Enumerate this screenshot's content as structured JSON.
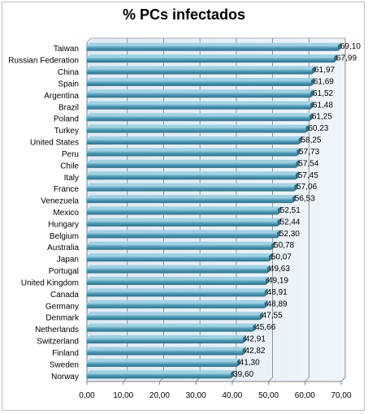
{
  "chart_data": {
    "type": "bar",
    "orientation": "horizontal",
    "title": "% PCs infectados",
    "xlabel": "",
    "ylabel": "",
    "xlim": [
      0,
      70
    ],
    "x_ticks": [
      "0,00",
      "10,00",
      "20,00",
      "30,00",
      "40,00",
      "50,00",
      "60,00",
      "70,00"
    ],
    "grid": "vertical major gridlines",
    "legend": "none",
    "categories": [
      "Taiwan",
      "Russian Federation",
      "China",
      "Spain",
      "Argentina",
      "Brazil",
      "Poland",
      "Turkey",
      "United States",
      "Peru",
      "Chile",
      "Italy",
      "France",
      "Venezuela",
      "Mexico",
      "Hungary",
      "Belgium",
      "Australia",
      "Japan",
      "Portugal",
      "United Kingdom",
      "Canada",
      "Germany",
      "Denmark",
      "Netherlands",
      "Switzerland",
      "Finland",
      "Sweden",
      "Norway"
    ],
    "values": [
      69.1,
      67.99,
      61.97,
      61.69,
      61.52,
      61.48,
      61.25,
      60.23,
      58.25,
      57.73,
      57.54,
      57.45,
      57.06,
      56.53,
      52.51,
      52.44,
      52.3,
      50.78,
      50.07,
      49.63,
      49.19,
      48.91,
      48.89,
      47.55,
      45.66,
      42.91,
      42.82,
      41.3,
      39.6
    ],
    "value_labels": [
      "69,10",
      "67,99",
      "61,97",
      "61,69",
      "61,52",
      "61,48",
      "61,25",
      "60,23",
      "58,25",
      "57,73",
      "57,54",
      "57,45",
      "57,06",
      "56,53",
      "52,51",
      "52,44",
      "52,30",
      "50,78",
      "50,07",
      "49,63",
      "49,19",
      "48,91",
      "48,89",
      "47,55",
      "45,66",
      "42,91",
      "42,82",
      "41,30",
      "39,60"
    ],
    "colors": {
      "bar": "#4f9cb8",
      "bar_highlight": "#9fd0e2",
      "bar_dark": "#2e6f88",
      "plot_bg": "#e6f0f7",
      "gridline": "#7f7f7f"
    }
  }
}
